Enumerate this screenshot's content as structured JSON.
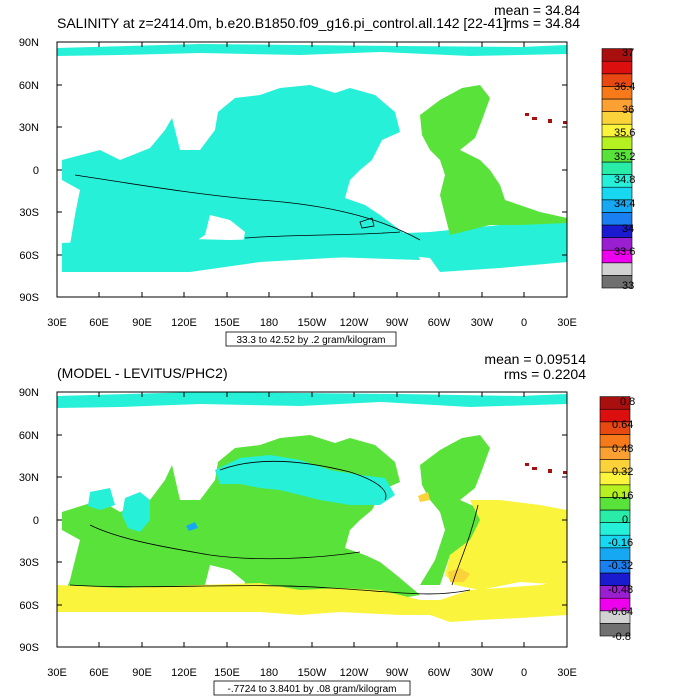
{
  "panels": [
    {
      "title": "SALINITY at z=2414.0m, b.e20.B1850.f09_g16.pi_control.all.142 [22-41]",
      "mean_text": "mean = 34.84",
      "rms_text": "rms = 34.84",
      "range_text": "33.3 to 42.52 by .2 gram/kilogram",
      "lat_labels": [
        "90N",
        "60N",
        "30N",
        "0",
        "30S",
        "60S",
        "90S"
      ],
      "lon_labels": [
        "30E",
        "60E",
        "90E",
        "120E",
        "150E",
        "180",
        "150W",
        "120W",
        "90W",
        "60W",
        "30W",
        "0",
        "30E"
      ],
      "colorbar": {
        "colors": [
          "#707070",
          "#d2d2d2",
          "#ee00ee",
          "#9a1fd0",
          "#1a1acf",
          "#1a7ff0",
          "#16a8f2",
          "#18d7f0",
          "#26f0d8",
          "#28eca8",
          "#59e33a",
          "#b5f020",
          "#fbf43c",
          "#fbd23a",
          "#fba133",
          "#f77a1a",
          "#e84812",
          "#dc0f0f",
          "#aa0f0f"
        ],
        "labels": [
          "33",
          "33.6",
          "34",
          "34.4",
          "34.8",
          "35.2",
          "35.6",
          "36",
          "36.4",
          "37"
        ]
      }
    },
    {
      "title": "(MODEL - LEVITUS/PHC2)",
      "mean_text": "mean = 0.09514",
      "rms_text": "rms = 0.2204",
      "range_text": "-.7724 to 3.8401 by .08 gram/kilogram",
      "lat_labels": [
        "90N",
        "60N",
        "30N",
        "0",
        "30S",
        "60S",
        "90S"
      ],
      "lon_labels": [
        "30E",
        "60E",
        "90E",
        "120E",
        "150E",
        "180",
        "150W",
        "120W",
        "90W",
        "60W",
        "30W",
        "0",
        "30E"
      ],
      "colorbar": {
        "colors": [
          "#707070",
          "#d2d2d2",
          "#ee00ee",
          "#9a1fd0",
          "#1a1acf",
          "#1a7ff0",
          "#16a8f2",
          "#18d7f0",
          "#26f0d8",
          "#28eca8",
          "#59e33a",
          "#b5f020",
          "#fbf43c",
          "#fbd23a",
          "#fba133",
          "#f77a1a",
          "#e84812",
          "#dc0f0f",
          "#aa0f0f"
        ],
        "labels": [
          "-0.8",
          "-0.64",
          "-0.48",
          "-0.32",
          "-0.16",
          "0",
          "0.16",
          "0.32",
          "0.48",
          "0.64",
          "0.8"
        ]
      }
    }
  ],
  "field_colors": {
    "cyan": "#26f0d8",
    "light_cyan": "#18d7f0",
    "blue": "#16a8f2",
    "green": "#59e33a",
    "yellow": "#fbf43c",
    "orange": "#fbd23a",
    "dark_red": "#aa0f0f"
  }
}
